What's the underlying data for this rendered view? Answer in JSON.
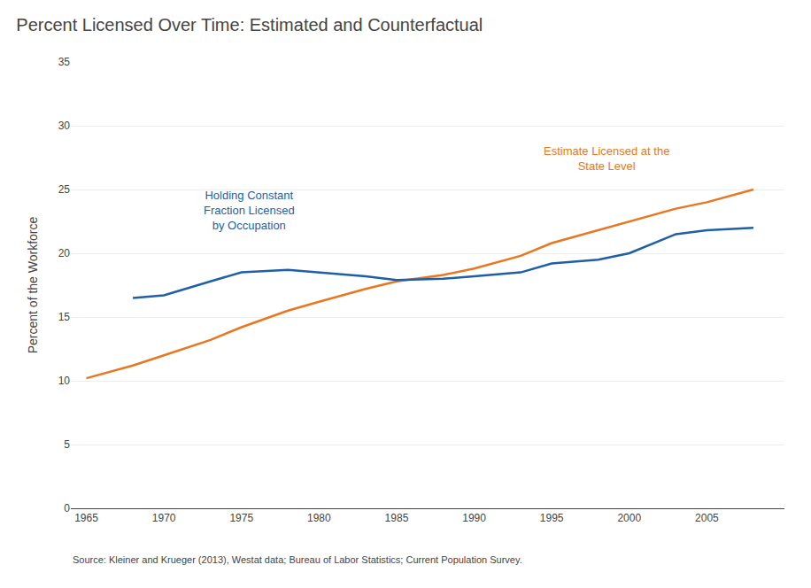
{
  "chart_data": {
    "type": "line",
    "title": "Percent Licensed Over Time: Estimated and Counterfactual",
    "ylabel": "Percent of the Workforce",
    "source": "Source: Kleiner and Krueger (2013), Westat data; Bureau of Labor Statistics; Current Population Survey.",
    "series": [
      {
        "color": "#e87722",
        "x": [
          1965,
          1968,
          1970,
          1973,
          1975,
          1978,
          1980,
          1983,
          1985,
          1988,
          1990,
          1993,
          1995,
          1998,
          2000,
          2003,
          2005,
          2008
        ],
        "values": [
          10.2,
          11.2,
          12.0,
          13.2,
          14.2,
          15.5,
          16.2,
          17.2,
          17.8,
          18.3,
          18.8,
          19.8,
          20.8,
          21.8,
          22.5,
          23.5,
          24.0,
          25.0
        ]
      },
      {
        "color": "#1f5fa6",
        "x": [
          1968,
          1970,
          1973,
          1975,
          1978,
          1980,
          1983,
          1985,
          1988,
          1990,
          1993,
          1995,
          1998,
          2000,
          2003,
          2005,
          2008
        ],
        "values": [
          16.5,
          16.7,
          17.8,
          18.5,
          18.7,
          18.5,
          18.2,
          17.9,
          18.0,
          18.2,
          18.5,
          19.2,
          19.5,
          20.0,
          21.5,
          21.8,
          22.0
        ]
      }
    ],
    "xlim": [
      1964,
      2010
    ],
    "ylim": [
      0,
      35
    ],
    "xticks": [
      1965,
      1970,
      1975,
      1980,
      1985,
      1990,
      1995,
      2000,
      2005
    ],
    "yticks": [
      0,
      5,
      10,
      15,
      20,
      25,
      30,
      35
    ],
    "grid": true,
    "annotations": [
      {
        "text": "Holding Constant\nFraction Licensed\nby Occupation",
        "x": 1975.5,
        "y": 21.5,
        "color": "#1f5fa6"
      },
      {
        "text": "Estimate Licensed at the\nState Level",
        "x": 1998.5,
        "y": 26.2,
        "color": "#e87722"
      }
    ]
  }
}
